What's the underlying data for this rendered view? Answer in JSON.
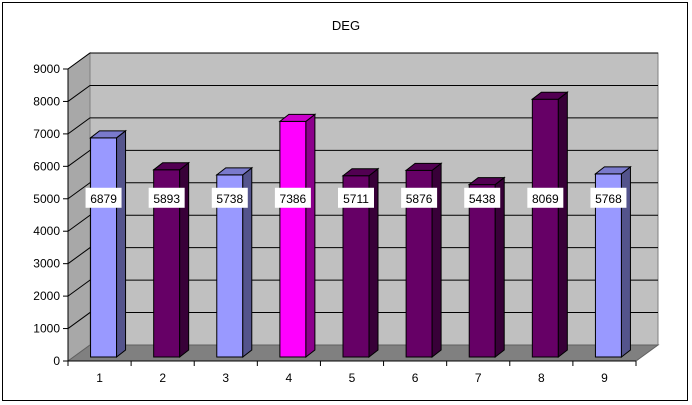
{
  "chart_data": {
    "type": "bar",
    "title": "DEG",
    "categories": [
      "1",
      "2",
      "3",
      "4",
      "5",
      "6",
      "7",
      "8",
      "9"
    ],
    "values": [
      6879,
      5893,
      5738,
      7386,
      5711,
      5876,
      5438,
      8069,
      5768
    ],
    "value_labels": [
      "6879",
      "5893",
      "5738",
      "7386",
      "5711",
      "5876",
      "5438",
      "8069",
      "5768"
    ],
    "colors": [
      "#9999ff",
      "#660066",
      "#9999ff",
      "#ff00ff",
      "#660066",
      "#660066",
      "#660066",
      "#660066",
      "#9999ff"
    ],
    "ylim": [
      0,
      9000
    ],
    "yticks": [
      "0",
      "1000",
      "2000",
      "3000",
      "4000",
      "5000",
      "6000",
      "7000",
      "8000",
      "9000"
    ],
    "grid": true,
    "style": "3d-column",
    "plot_wall_color": "#c0c0c0",
    "floor_color": "#808080"
  }
}
